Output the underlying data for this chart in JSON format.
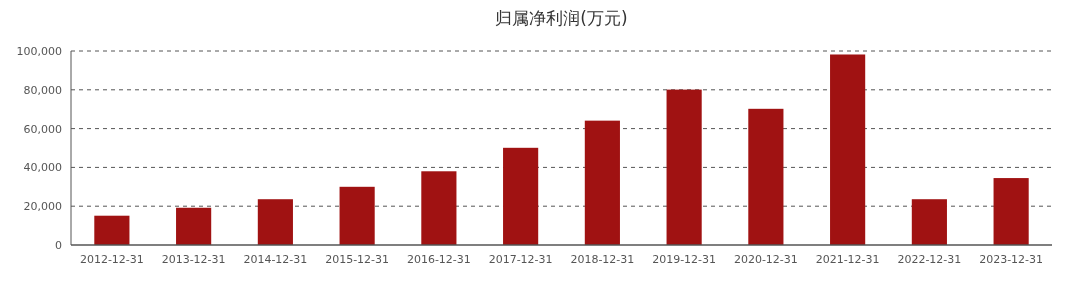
{
  "chart_data": {
    "type": "bar",
    "title": "归属净利润(万元)",
    "categories": [
      "2012-12-31",
      "2013-12-31",
      "2014-12-31",
      "2015-12-31",
      "2016-12-31",
      "2017-12-31",
      "2018-12-31",
      "2019-12-31",
      "2020-12-31",
      "2021-12-31",
      "2022-12-31",
      "2023-12-31"
    ],
    "values": [
      15100,
      19200,
      23600,
      30000,
      38000,
      50100,
      64100,
      80100,
      70200,
      98200,
      23600,
      34500
    ],
    "color": "#a01212",
    "ylim": [
      0,
      100000
    ],
    "yticks": [
      0,
      {
        "value": 20000,
        "label": "20,000"
      },
      {
        "value": 40000,
        "label": "40,000"
      },
      {
        "value": 60000,
        "label": "60,000"
      },
      {
        "value": 80000,
        "label": "80,000"
      },
      {
        "value": 100000,
        "label": "100,000"
      }
    ],
    "grid": "y"
  }
}
